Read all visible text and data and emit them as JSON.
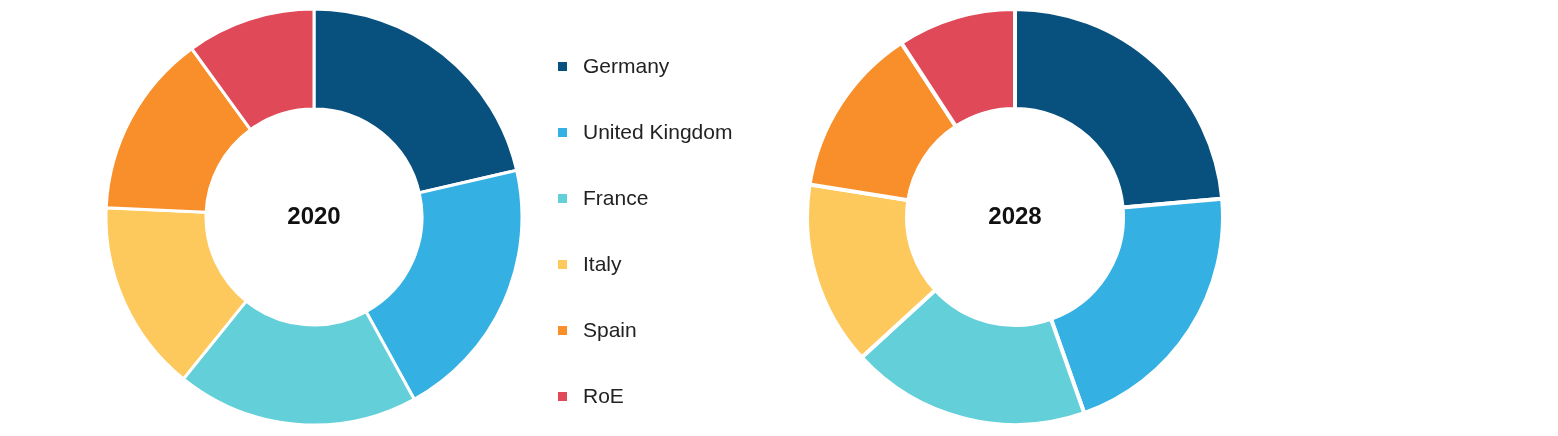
{
  "chart_data": {
    "type": "donut",
    "categories": [
      "Germany",
      "United Kingdom",
      "France",
      "Italy",
      "Spain",
      "RoE"
    ],
    "colors": [
      "#08517e",
      "#35b0e2",
      "#63cfd9",
      "#fdc85c",
      "#f98f2a",
      "#e04a58"
    ],
    "legend": "right",
    "series": [
      {
        "name": "2020",
        "values": [
          21.4,
          20.6,
          18.8,
          14.9,
          14.3,
          10.0
        ]
      },
      {
        "name": "2028",
        "values": [
          23.6,
          21.0,
          18.6,
          14.3,
          13.3,
          9.2
        ]
      }
    ]
  }
}
